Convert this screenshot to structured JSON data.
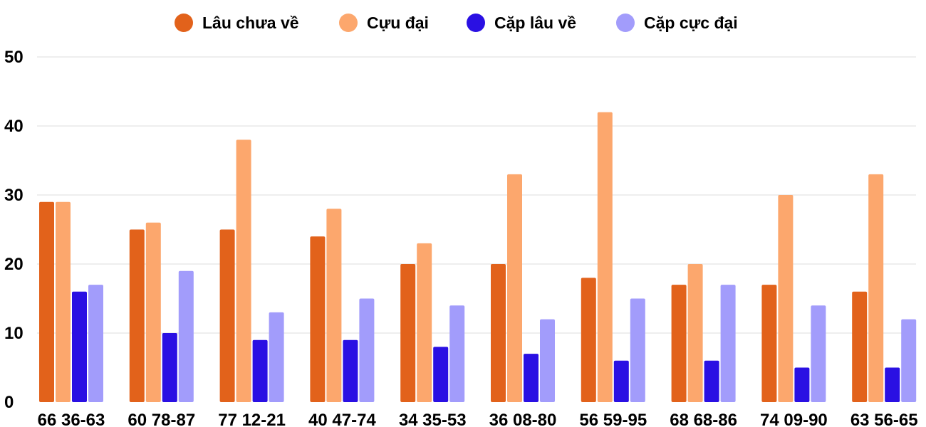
{
  "chart_data": {
    "type": "bar",
    "categories": [
      "66 36-63",
      "60 78-87",
      "77 12-21",
      "40 47-74",
      "34 35-53",
      "36 08-80",
      "56 59-95",
      "68 68-86",
      "74 09-90",
      "63 56-65"
    ],
    "series": [
      {
        "name": "Lâu chưa về",
        "color": "#e2621b",
        "values": [
          29,
          25,
          25,
          24,
          20,
          20,
          18,
          17,
          17,
          16
        ]
      },
      {
        "name": "Cựu đại",
        "color": "#fca76d",
        "values": [
          29,
          26,
          38,
          28,
          23,
          33,
          42,
          20,
          30,
          33
        ]
      },
      {
        "name": "Cặp lâu về",
        "color": "#2a10e3",
        "values": [
          16,
          10,
          9,
          9,
          8,
          7,
          6,
          6,
          5,
          5
        ]
      },
      {
        "name": "Cặp cực đại",
        "color": "#a29cfb",
        "values": [
          17,
          19,
          13,
          15,
          14,
          12,
          15,
          17,
          14,
          12
        ]
      }
    ],
    "ylim": [
      0,
      50
    ],
    "yticks": [
      0,
      10,
      20,
      30,
      40,
      50
    ],
    "grid": true,
    "legend_position": "top"
  }
}
